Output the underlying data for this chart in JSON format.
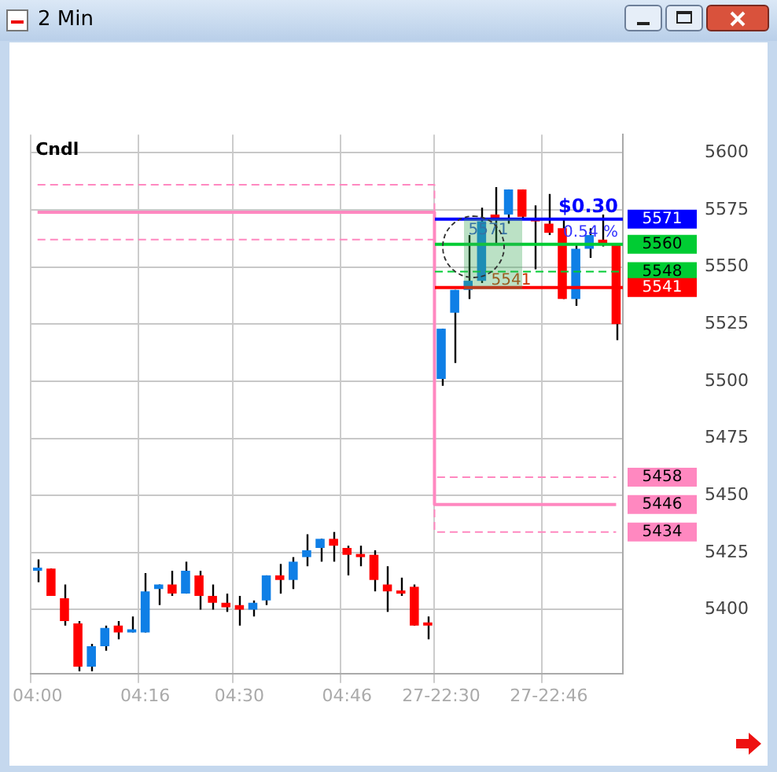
{
  "chart_data": {
    "type": "candlestick",
    "title": "2 Min",
    "categories": [
      "04:00",
      null,
      null,
      null,
      null,
      null,
      null,
      null,
      "04:16",
      null,
      null,
      null,
      null,
      null,
      null,
      "04:30",
      null,
      null,
      null,
      null,
      null,
      null,
      null,
      "04:46",
      null,
      null,
      null,
      null,
      null,
      null,
      "27-22:30",
      null,
      null,
      null,
      null,
      null,
      null,
      null,
      "27-22:46",
      null,
      null,
      null,
      null,
      null
    ],
    "ohlc": [
      [
        5417,
        5422,
        5412,
        5418
      ],
      [
        5418,
        5418,
        5406,
        5406
      ],
      [
        5405,
        5411,
        5393,
        5395
      ],
      [
        5394,
        5395,
        5373,
        5375
      ],
      [
        5375,
        5385,
        5373,
        5384
      ],
      [
        5384,
        5393,
        5382,
        5392
      ],
      [
        5393,
        5395,
        5387,
        5390
      ],
      [
        5390,
        5397,
        5390,
        5391
      ],
      [
        5390,
        5416,
        5390,
        5408
      ],
      [
        5409,
        5411,
        5402,
        5411
      ],
      [
        5411,
        5417,
        5406,
        5407
      ],
      [
        5407,
        5421,
        5407,
        5417
      ],
      [
        5415,
        5417,
        5400,
        5406
      ],
      [
        5406,
        5411,
        5400,
        5403
      ],
      [
        5403,
        5407,
        5399,
        5401
      ],
      [
        5402,
        5406,
        5393,
        5400
      ],
      [
        5400,
        5404,
        5397,
        5403
      ],
      [
        5404,
        5415,
        5402,
        5415
      ],
      [
        5415,
        5420,
        5407,
        5413
      ],
      [
        5413,
        5423,
        5409,
        5421
      ],
      [
        5423,
        5433,
        5419,
        5426
      ],
      [
        5427,
        5431,
        5421,
        5431
      ],
      [
        5431,
        5434,
        5421,
        5428
      ],
      [
        5427,
        5428,
        5415,
        5424
      ],
      [
        5424,
        5428,
        5419,
        5423
      ],
      [
        5424,
        5426,
        5408,
        5413
      ],
      [
        5411,
        5419,
        5399,
        5408
      ],
      [
        5408,
        5414,
        5406,
        5407
      ],
      [
        5410,
        5411,
        5393,
        5393
      ],
      [
        5394,
        5397,
        5387,
        5393
      ],
      [
        5501,
        5523,
        5498,
        5523
      ],
      [
        5530,
        5540,
        5508,
        5540
      ],
      [
        5540,
        5564,
        5536,
        5544
      ],
      [
        5544,
        5576,
        5543,
        5570
      ],
      [
        5573,
        5585,
        5560,
        5571
      ],
      [
        5573,
        5584,
        5569,
        5584
      ],
      [
        5584,
        5584,
        5571,
        5572
      ],
      [
        5571,
        5577,
        5549,
        5570
      ],
      [
        5569,
        5582,
        5564,
        5565
      ],
      [
        5567,
        5571,
        5536,
        5536
      ],
      [
        5536,
        5560,
        5533,
        5558
      ],
      [
        5558,
        5567,
        5554,
        5564
      ],
      [
        5562,
        5573,
        5559,
        5560
      ],
      [
        5560,
        5560,
        5518,
        5525
      ]
    ],
    "colors": [
      "#0f7fe6",
      "#ff0000",
      "#ff0000",
      "#ff0000",
      "#0f7fe6",
      "#0f7fe6",
      "#ff0000",
      "#0f7fe6",
      "#0f7fe6",
      "#0f7fe6",
      "#ff0000",
      "#0f7fe6",
      "#ff0000",
      "#ff0000",
      "#ff0000",
      "#ff0000",
      "#0f7fe6",
      "#0f7fe6",
      "#ff0000",
      "#0f7fe6",
      "#0f7fe6",
      "#0f7fe6",
      "#ff0000",
      "#ff0000",
      "#ff0000",
      "#ff0000",
      "#ff0000",
      "#ff0000",
      "#ff0000",
      "#ff0000",
      "#0f7fe6",
      "#0f7fe6",
      "#0f7fe6",
      "#0f7fe6",
      "#ff0000",
      "#0f7fe6",
      "#ff0000",
      "#ff0000",
      "#ff0000",
      "#ff0000",
      "#0f7fe6",
      "#0f7fe6",
      "#ff0000",
      "#ff0000"
    ],
    "series": [
      {
        "type": "step",
        "color": "#ff88c0",
        "line_style": "dashed",
        "values": [
          5586,
          5586,
          5586,
          5586,
          5586,
          5586,
          5586,
          5586,
          5586,
          5586,
          5586,
          5586,
          5586,
          5586,
          5586,
          5586,
          5586,
          5586,
          5586,
          5586,
          5586,
          5586,
          5586,
          5586,
          5586,
          5586,
          5586,
          5586,
          5586,
          5586,
          5458,
          5458,
          5458,
          5458,
          5458,
          5458,
          5458,
          5458,
          5458,
          5458,
          5458,
          5458,
          5458,
          5458
        ],
        "value_labels": [
          null,
          null,
          null,
          null,
          null,
          null,
          null,
          null,
          null,
          null,
          null,
          null,
          null,
          null,
          null,
          null,
          null,
          null,
          null,
          null,
          null,
          null,
          null,
          null,
          null,
          null,
          null,
          null,
          null,
          null,
          null,
          null,
          null,
          null,
          null,
          null,
          null,
          null,
          null,
          null,
          null,
          null,
          null,
          "5458"
        ]
      },
      {
        "type": "step",
        "color": "#ff88c0",
        "line_style": "solid",
        "values": [
          5574,
          5574,
          5574,
          5574,
          5574,
          5574,
          5574,
          5574,
          5574,
          5574,
          5574,
          5574,
          5574,
          5574,
          5574,
          5574,
          5574,
          5574,
          5574,
          5574,
          5574,
          5574,
          5574,
          5574,
          5574,
          5574,
          5574,
          5574,
          5574,
          5574,
          5446,
          5446,
          5446,
          5446,
          5446,
          5446,
          5446,
          5446,
          5446,
          5446,
          5446,
          5446,
          5446,
          5446
        ],
        "value_labels": [
          null,
          null,
          null,
          null,
          null,
          null,
          null,
          null,
          null,
          null,
          null,
          null,
          null,
          null,
          null,
          null,
          null,
          null,
          null,
          null,
          null,
          null,
          null,
          null,
          null,
          null,
          null,
          null,
          null,
          null,
          null,
          null,
          null,
          null,
          null,
          null,
          null,
          null,
          null,
          null,
          null,
          null,
          null,
          "5446"
        ]
      },
      {
        "type": "step",
        "color": "#ff88c0",
        "line_style": "dashed",
        "values": [
          5562,
          5562,
          5562,
          5562,
          5562,
          5562,
          5562,
          5562,
          5562,
          5562,
          5562,
          5562,
          5562,
          5562,
          5562,
          5562,
          5562,
          5562,
          5562,
          5562,
          5562,
          5562,
          5562,
          5562,
          5562,
          5562,
          5562,
          5562,
          5562,
          5562,
          5434,
          5434,
          5434,
          5434,
          5434,
          5434,
          5434,
          5434,
          5434,
          5434,
          5434,
          5434,
          5434,
          5434
        ],
        "value_labels": [
          null,
          null,
          null,
          null,
          null,
          null,
          null,
          null,
          null,
          null,
          null,
          null,
          null,
          null,
          null,
          null,
          null,
          null,
          null,
          null,
          null,
          null,
          null,
          null,
          null,
          null,
          null,
          null,
          null,
          null,
          null,
          null,
          null,
          null,
          null,
          null,
          null,
          null,
          null,
          null,
          null,
          null,
          null,
          "5434"
        ]
      }
    ],
    "ref_lines": [
      {
        "axis": "y",
        "value": 5571,
        "label": "5571",
        "color": "#0000ff",
        "line_style": "solid"
      },
      {
        "axis": "y",
        "value": 5560,
        "label": "5560",
        "color": "#00cc33",
        "line_style": "solid"
      },
      {
        "axis": "y",
        "value": 5548,
        "label": "5548",
        "color": "#00cc33",
        "line_style": "dashed"
      },
      {
        "axis": "y",
        "value": 5541,
        "label": "5541",
        "color": "#ff0000",
        "line_style": "solid"
      }
    ],
    "annotations": [
      "Cndl",
      "$0.30",
      "0.54 %",
      "5571",
      "5541"
    ],
    "ylim": [
      5372,
      5608
    ],
    "yticks": [
      5400,
      5425,
      5450,
      5475,
      5500,
      5525,
      5550,
      5575,
      5600
    ],
    "grid": true,
    "legend": false
  }
}
